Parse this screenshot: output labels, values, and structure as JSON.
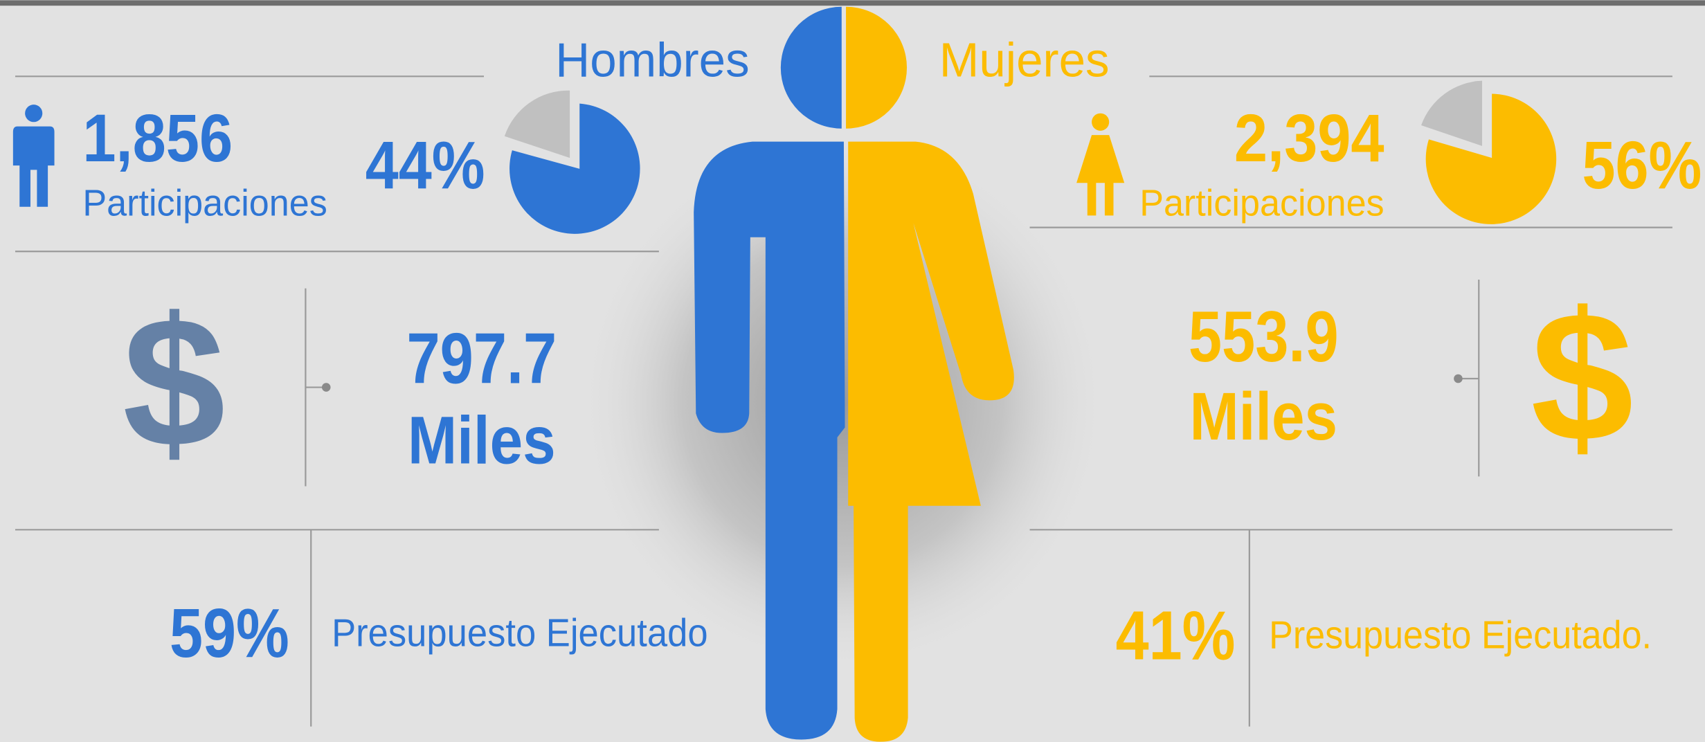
{
  "header": {
    "men_label": "Hombres",
    "women_label": "Mujeres"
  },
  "men": {
    "participations": "1,856",
    "participations_label": "Participaciones",
    "share": "44%",
    "currency_symbol": "$",
    "budget": "797.7",
    "budget_unit": "Miles",
    "executed": "59%",
    "executed_label": "Presupuesto Ejecutado"
  },
  "women": {
    "participations": "2,394",
    "participations_label": "Participaciones",
    "share": "56%",
    "currency_symbol": "$",
    "budget": "553.9",
    "budget_unit": "Miles",
    "executed": "41%",
    "executed_label": "Presupuesto Ejecutado."
  }
}
